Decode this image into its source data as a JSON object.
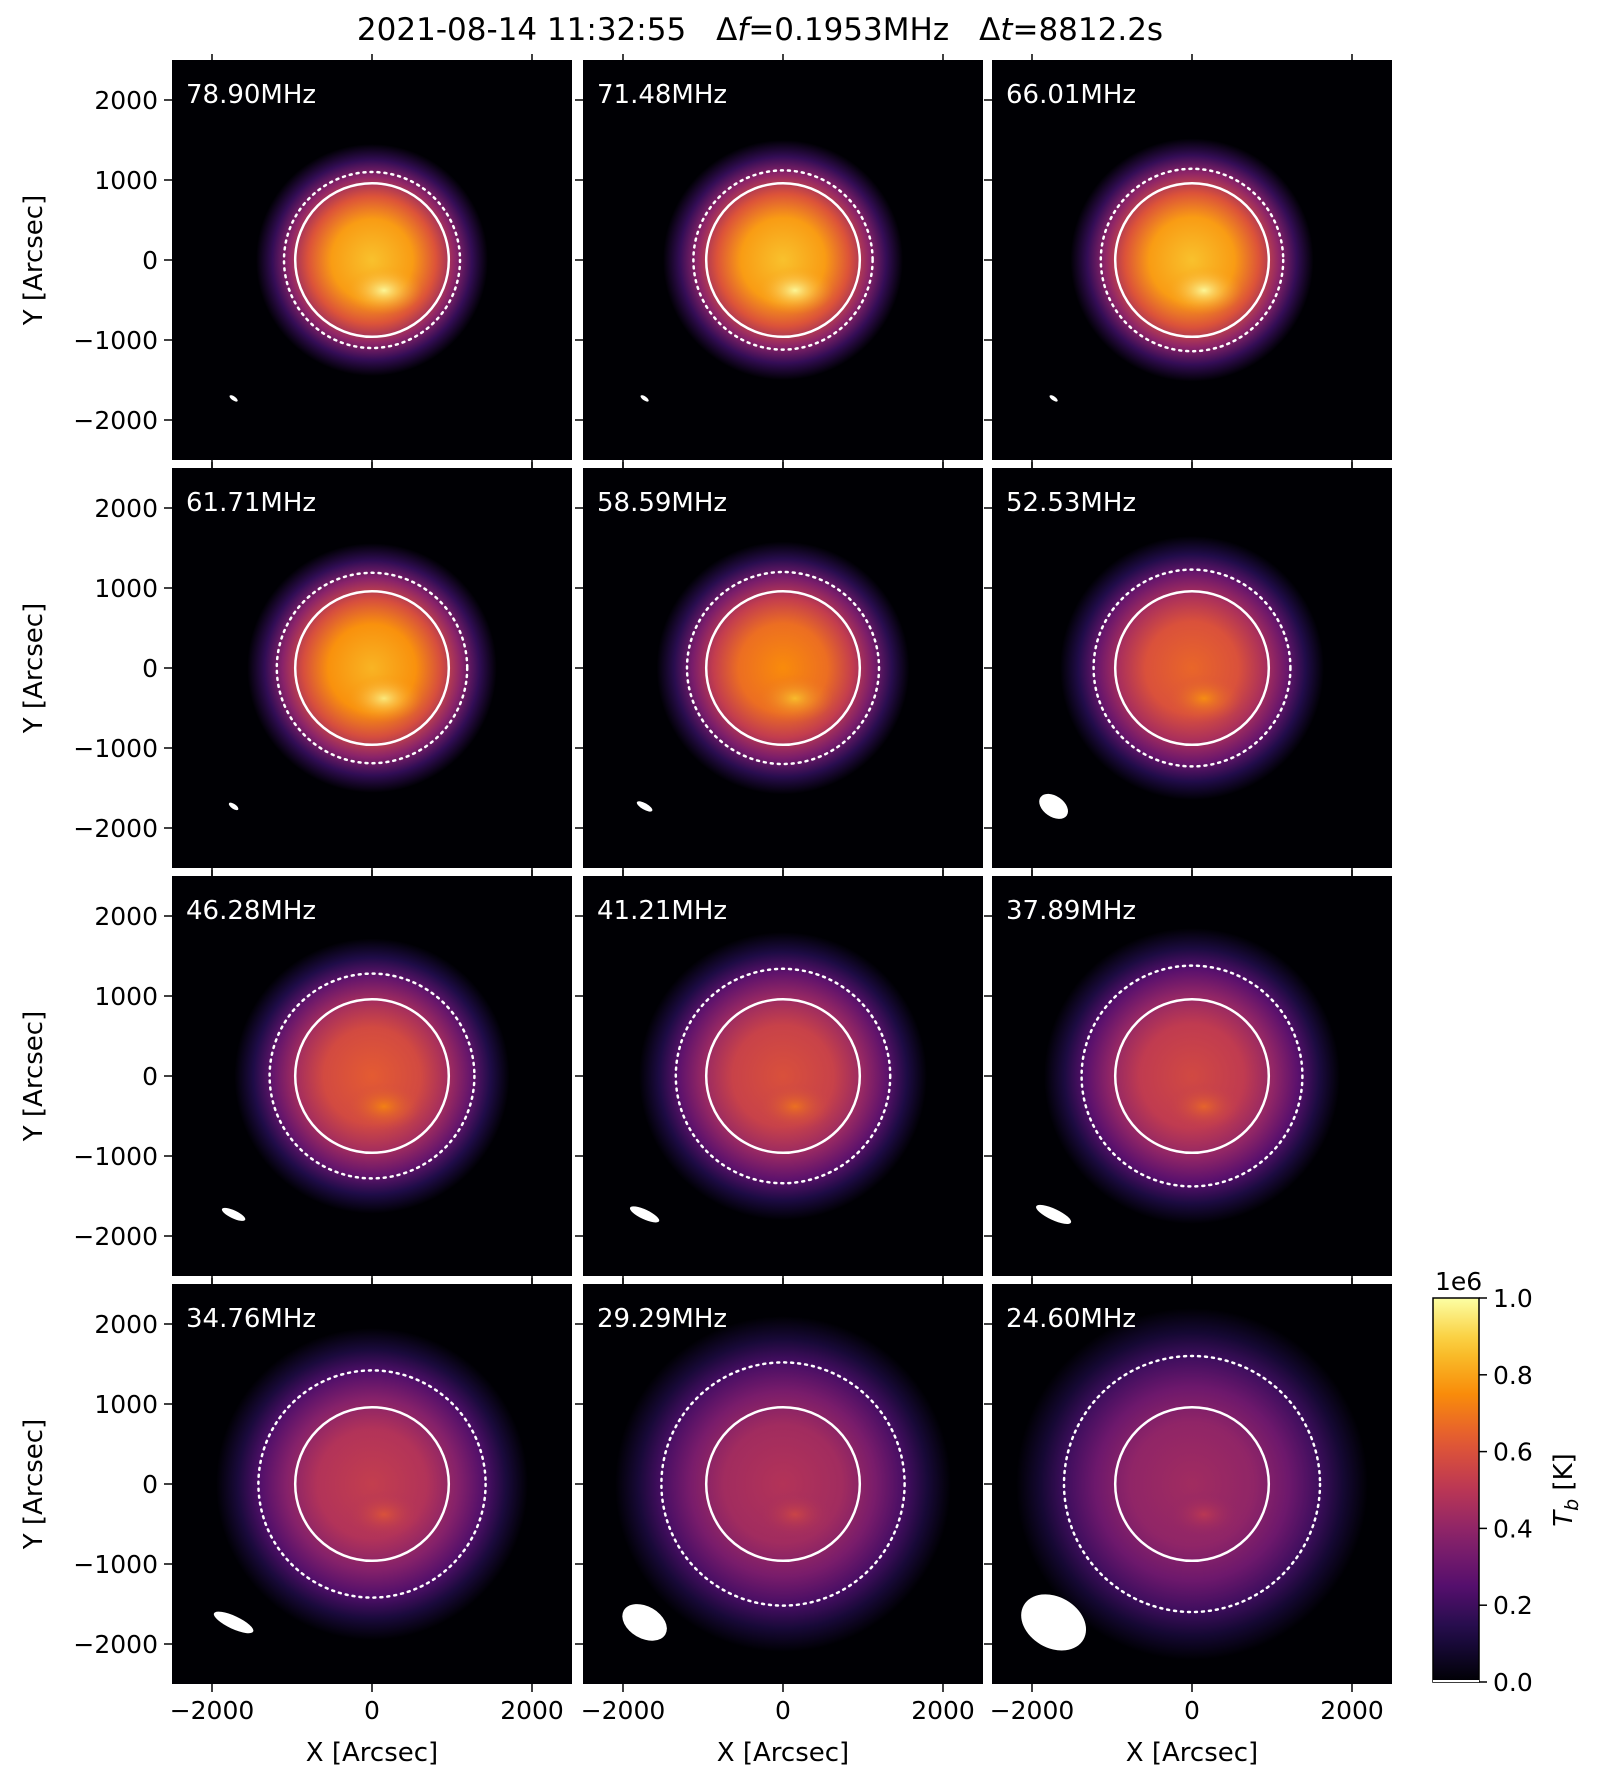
{
  "title": {
    "time": "2021-08-14 11:32:55",
    "df_prefix": "Δ",
    "df_var": "f",
    "df_value": "=0.1953MHz",
    "dt_prefix": "Δ",
    "dt_var": "t",
    "dt_value": "=8812.2s"
  },
  "chart_data": {
    "type": "heatmap",
    "colormap": "inferno",
    "xlabel": "X [Arcsec]",
    "ylabel": "Y [Arcsec]",
    "xlim": [
      -2500,
      2500
    ],
    "ylim": [
      -2500,
      2500
    ],
    "xticks": [
      -2000,
      0,
      2000
    ],
    "yticks": [
      -2000,
      -1000,
      0,
      1000,
      2000
    ],
    "xtick_labels": [
      "−2000",
      "0",
      "2000"
    ],
    "ytick_labels": [
      "−2000",
      "−1000",
      "0",
      "1000",
      "2000"
    ],
    "grid": false,
    "optical_disk_radius": 960,
    "panels": [
      {
        "label": "78.90MHz",
        "freq_mhz": 78.9,
        "dotted_radius": 1100,
        "halo_radius": 1450,
        "peak": 0.98,
        "beam": {
          "x": -1730,
          "y": -1730,
          "rx": 60,
          "ry": 25,
          "angle": 35
        }
      },
      {
        "label": "71.48MHz",
        "freq_mhz": 71.48,
        "dotted_radius": 1120,
        "halo_radius": 1500,
        "peak": 0.98,
        "beam": {
          "x": -1730,
          "y": -1730,
          "rx": 60,
          "ry": 25,
          "angle": 35
        }
      },
      {
        "label": "66.01MHz",
        "freq_mhz": 66.01,
        "dotted_radius": 1140,
        "halo_radius": 1520,
        "peak": 0.98,
        "beam": {
          "x": -1730,
          "y": -1730,
          "rx": 60,
          "ry": 25,
          "angle": 35
        }
      },
      {
        "label": "61.71MHz",
        "freq_mhz": 61.71,
        "dotted_radius": 1190,
        "halo_radius": 1560,
        "peak": 0.95,
        "beam": {
          "x": -1730,
          "y": -1730,
          "rx": 70,
          "ry": 30,
          "angle": 35
        }
      },
      {
        "label": "58.59MHz",
        "freq_mhz": 58.59,
        "dotted_radius": 1200,
        "halo_radius": 1580,
        "peak": 0.85,
        "beam": {
          "x": -1730,
          "y": -1730,
          "rx": 110,
          "ry": 40,
          "angle": 30
        }
      },
      {
        "label": "52.53MHz",
        "freq_mhz": 52.53,
        "dotted_radius": 1230,
        "halo_radius": 1650,
        "peak": 0.75,
        "beam": {
          "x": -1730,
          "y": -1730,
          "rx": 200,
          "ry": 130,
          "angle": 35
        }
      },
      {
        "label": "46.28MHz",
        "freq_mhz": 46.28,
        "dotted_radius": 1280,
        "halo_radius": 1720,
        "peak": 0.72,
        "beam": {
          "x": -1730,
          "y": -1730,
          "rx": 160,
          "ry": 50,
          "angle": 25
        }
      },
      {
        "label": "41.21MHz",
        "freq_mhz": 41.21,
        "dotted_radius": 1340,
        "halo_radius": 1800,
        "peak": 0.68,
        "beam": {
          "x": -1730,
          "y": -1730,
          "rx": 200,
          "ry": 60,
          "angle": 25
        }
      },
      {
        "label": "37.89MHz",
        "freq_mhz": 37.89,
        "dotted_radius": 1380,
        "halo_radius": 1850,
        "peak": 0.65,
        "beam": {
          "x": -1730,
          "y": -1730,
          "rx": 240,
          "ry": 70,
          "angle": 25
        }
      },
      {
        "label": "34.76MHz",
        "freq_mhz": 34.76,
        "dotted_radius": 1420,
        "halo_radius": 1950,
        "peak": 0.6,
        "beam": {
          "x": -1730,
          "y": -1730,
          "rx": 270,
          "ry": 80,
          "angle": 25
        }
      },
      {
        "label": "29.29MHz",
        "freq_mhz": 29.29,
        "dotted_radius": 1520,
        "halo_radius": 2100,
        "peak": 0.55,
        "beam": {
          "x": -1730,
          "y": -1730,
          "rx": 300,
          "ry": 200,
          "angle": 30
        }
      },
      {
        "label": "24.60MHz",
        "freq_mhz": 24.6,
        "dotted_radius": 1600,
        "halo_radius": 2200,
        "peak": 0.5,
        "beam": {
          "x": -1730,
          "y": -1730,
          "rx": 430,
          "ry": 320,
          "angle": 30
        }
      }
    ],
    "colorbar": {
      "label_var": "T",
      "label_sub": "b",
      "label_unit": " [K]",
      "offset_text": "1e6",
      "ticks": [
        0.0,
        0.2,
        0.4,
        0.6,
        0.8,
        1.0
      ],
      "tick_labels": [
        "0.0",
        "0.2",
        "0.4",
        "0.6",
        "0.8",
        "1.0"
      ],
      "range": [
        0.0,
        1.0
      ]
    }
  }
}
